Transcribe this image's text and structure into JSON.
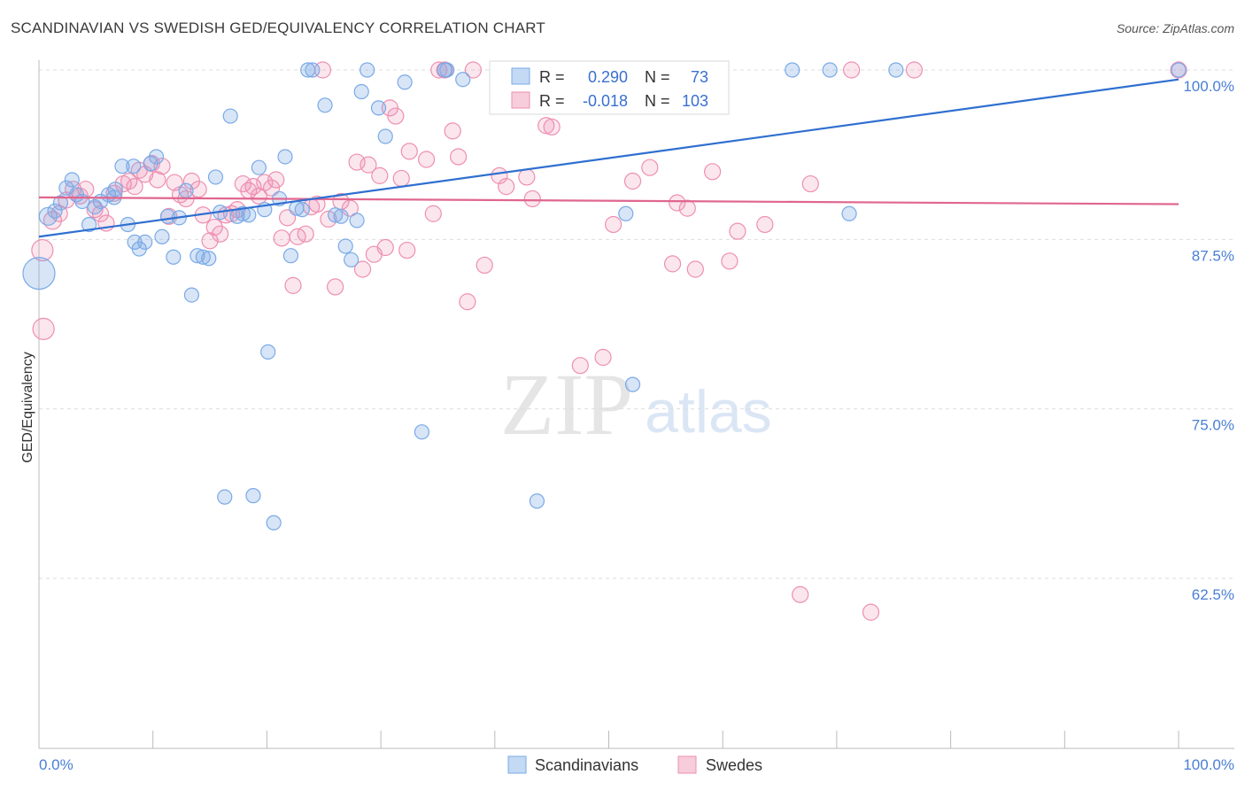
{
  "title": "SCANDINAVIAN VS SWEDISH GED/EQUIVALENCY CORRELATION CHART",
  "source": "Source: ZipAtlas.com",
  "watermark": {
    "zip": "ZIP",
    "atlas": "atlas"
  },
  "colors": {
    "blue": "#7aaae6",
    "blue_fill": "rgba(122,170,230,0.30)",
    "blue_line": "#2f6fd0",
    "pink": "#ee8fb0",
    "pink_fill": "rgba(238,143,176,0.22)",
    "pink_line": "#e0668f",
    "tick_text": "#4a7fd4",
    "grid": "#dddddd"
  },
  "stats": {
    "r_label": "R =",
    "n_label": "N =",
    "blue": {
      "r": "0.290",
      "n": "73"
    },
    "pink": {
      "r": "-0.018",
      "n": "103"
    }
  },
  "chart_data": {
    "type": "scatter",
    "title": "SCANDINAVIAN VS SWEDISH GED/EQUIVALENCY CORRELATION CHART",
    "xlabel": "",
    "ylabel": "GED/Equivalency",
    "xlim": [
      0,
      100
    ],
    "ylim": [
      50,
      101
    ],
    "x_tick_labels": [
      "0.0%",
      "100.0%"
    ],
    "y_ticks": [
      {
        "value": 100,
        "label": "100.0%"
      },
      {
        "value": 87.5,
        "label": "87.5%"
      },
      {
        "value": 75,
        "label": "75.0%"
      },
      {
        "value": 62.5,
        "label": "62.5%"
      }
    ],
    "grid": true,
    "legend_position": "bottom-center",
    "series": [
      {
        "name": "Scandinavians",
        "color": "#7aaae6",
        "trend": {
          "x": [
            0,
            100
          ],
          "y": [
            87.7,
            99.3
          ]
        },
        "points": [
          [
            0,
            85,
            18
          ],
          [
            0.8,
            89.2,
            10
          ],
          [
            1.4,
            89.6,
            8
          ],
          [
            1.9,
            90.2,
            8
          ],
          [
            2.4,
            91.3,
            8
          ],
          [
            2.9,
            91.9,
            8
          ],
          [
            3.3,
            90.8,
            8
          ],
          [
            3.8,
            90.3,
            8
          ],
          [
            4.4,
            88.6,
            8
          ],
          [
            4.9,
            89.9,
            8
          ],
          [
            5.4,
            90.3,
            8
          ],
          [
            6.1,
            90.8,
            8
          ],
          [
            6.6,
            90.6,
            8
          ],
          [
            7.3,
            92.9,
            8
          ],
          [
            7.8,
            88.6,
            8
          ],
          [
            8.4,
            87.3,
            8
          ],
          [
            8.8,
            86.8,
            8
          ],
          [
            9.3,
            87.3,
            8
          ],
          [
            9.8,
            93.1,
            8
          ],
          [
            10.3,
            93.6,
            8
          ],
          [
            10.8,
            87.7,
            8
          ],
          [
            11.3,
            89.2,
            8
          ],
          [
            11.8,
            86.2,
            8
          ],
          [
            12.3,
            89.1,
            8
          ],
          [
            12.9,
            91.1,
            8
          ],
          [
            13.4,
            83.4,
            8
          ],
          [
            13.9,
            86.3,
            8
          ],
          [
            14.4,
            86.2,
            8
          ],
          [
            14.9,
            86.1,
            8
          ],
          [
            15.5,
            92.1,
            8
          ],
          [
            15.9,
            89.5,
            8
          ],
          [
            16.3,
            68.5,
            8
          ],
          [
            16.8,
            96.6,
            8
          ],
          [
            17.4,
            89.2,
            8
          ],
          [
            18.4,
            89.3,
            8
          ],
          [
            18.8,
            68.6,
            8
          ],
          [
            19.3,
            92.8,
            8
          ],
          [
            19.8,
            89.7,
            8
          ],
          [
            20.1,
            79.2,
            8
          ],
          [
            20.6,
            66.6,
            8
          ],
          [
            21.1,
            90.5,
            8
          ],
          [
            21.6,
            93.6,
            8
          ],
          [
            22.1,
            86.3,
            8
          ],
          [
            22.6,
            89.8,
            8
          ],
          [
            23.1,
            89.7,
            8
          ],
          [
            23.6,
            100,
            8
          ],
          [
            24.0,
            100,
            8
          ],
          [
            25.1,
            97.4,
            8
          ],
          [
            26.0,
            89.3,
            8
          ],
          [
            26.9,
            87.0,
            8
          ],
          [
            27.4,
            86.0,
            8
          ],
          [
            27.9,
            88.9,
            8
          ],
          [
            28.3,
            98.4,
            8
          ],
          [
            28.8,
            100,
            8
          ],
          [
            29.8,
            97.2,
            8
          ],
          [
            30.4,
            95.1,
            8
          ],
          [
            32.1,
            99.1,
            8
          ],
          [
            33.6,
            73.3,
            8
          ],
          [
            35.6,
            100,
            8
          ],
          [
            35.8,
            100,
            8
          ],
          [
            37.2,
            99.3,
            8
          ],
          [
            43.7,
            68.2,
            8
          ],
          [
            51.5,
            89.4,
            8
          ],
          [
            52.1,
            76.8,
            8
          ],
          [
            66.1,
            100,
            8
          ],
          [
            69.4,
            100,
            8
          ],
          [
            71.1,
            89.4,
            8
          ],
          [
            75.2,
            100,
            8
          ],
          [
            100,
            100,
            8
          ],
          [
            8.3,
            92.9,
            8
          ],
          [
            17.9,
            89.4,
            8
          ],
          [
            6.7,
            91.2,
            8
          ],
          [
            26.5,
            89.2,
            8
          ]
        ]
      },
      {
        "name": "Swedes",
        "color": "#ee8fb0",
        "trend": {
          "x": [
            0,
            100
          ],
          "y": [
            90.6,
            90.1
          ]
        },
        "points": [
          [
            0.3,
            86.7,
            12
          ],
          [
            0.4,
            80.9,
            12
          ],
          [
            1.2,
            88.9,
            10
          ],
          [
            1.8,
            89.4,
            9
          ],
          [
            2.4,
            90.4,
            9
          ],
          [
            3.0,
            91.2,
            9
          ],
          [
            3.6,
            90.7,
            9
          ],
          [
            4.1,
            91.2,
            9
          ],
          [
            4.9,
            89.7,
            9
          ],
          [
            5.4,
            89.4,
            9
          ],
          [
            5.9,
            88.7,
            9
          ],
          [
            6.6,
            90.9,
            9
          ],
          [
            7.4,
            91.6,
            9
          ],
          [
            7.9,
            91.8,
            9
          ],
          [
            8.4,
            91.4,
            9
          ],
          [
            8.8,
            92.6,
            9
          ],
          [
            9.3,
            92.3,
            9
          ],
          [
            9.9,
            93.1,
            9
          ],
          [
            10.4,
            91.9,
            9
          ],
          [
            10.8,
            92.9,
            9
          ],
          [
            11.4,
            89.2,
            9
          ],
          [
            11.9,
            91.7,
            9
          ],
          [
            12.4,
            90.8,
            9
          ],
          [
            12.9,
            90.5,
            9
          ],
          [
            13.4,
            91.8,
            9
          ],
          [
            14.0,
            91.2,
            9
          ],
          [
            14.4,
            89.3,
            9
          ],
          [
            15.0,
            87.4,
            9
          ],
          [
            15.4,
            88.4,
            9
          ],
          [
            15.9,
            87.9,
            9
          ],
          [
            16.4,
            89.3,
            9
          ],
          [
            16.9,
            89.4,
            9
          ],
          [
            17.4,
            89.7,
            9
          ],
          [
            17.9,
            91.6,
            9
          ],
          [
            18.4,
            91.1,
            9
          ],
          [
            18.8,
            91.4,
            9
          ],
          [
            19.3,
            90.7,
            9
          ],
          [
            19.8,
            91.7,
            9
          ],
          [
            20.4,
            91.3,
            9
          ],
          [
            20.8,
            91.9,
            9
          ],
          [
            21.3,
            87.6,
            9
          ],
          [
            21.8,
            89.1,
            9
          ],
          [
            22.3,
            84.1,
            9
          ],
          [
            22.7,
            87.7,
            9
          ],
          [
            23.4,
            87.9,
            9
          ],
          [
            23.9,
            89.9,
            9
          ],
          [
            24.4,
            90.1,
            9
          ],
          [
            24.9,
            100,
            9
          ],
          [
            25.4,
            89.0,
            9
          ],
          [
            26.0,
            84.0,
            9
          ],
          [
            26.5,
            90.3,
            9
          ],
          [
            27.3,
            89.8,
            9
          ],
          [
            27.9,
            93.2,
            9
          ],
          [
            28.4,
            85.3,
            9
          ],
          [
            28.9,
            93.0,
            9
          ],
          [
            29.4,
            86.4,
            9
          ],
          [
            29.9,
            92.2,
            9
          ],
          [
            30.4,
            86.9,
            9
          ],
          [
            30.8,
            97.2,
            9
          ],
          [
            31.3,
            96.6,
            9
          ],
          [
            31.8,
            92.0,
            9
          ],
          [
            32.3,
            86.7,
            9
          ],
          [
            32.5,
            94.0,
            9
          ],
          [
            34.0,
            93.4,
            9
          ],
          [
            34.6,
            89.4,
            9
          ],
          [
            35.1,
            100,
            9
          ],
          [
            35.6,
            100,
            9
          ],
          [
            36.3,
            95.5,
            9
          ],
          [
            36.8,
            93.6,
            9
          ],
          [
            37.6,
            82.9,
            9
          ],
          [
            38.1,
            100,
            9
          ],
          [
            39.1,
            85.6,
            9
          ],
          [
            40.4,
            92.2,
            9
          ],
          [
            41.0,
            91.4,
            9
          ],
          [
            42.4,
            100,
            9
          ],
          [
            42.8,
            92.1,
            9
          ],
          [
            43.3,
            90.5,
            9
          ],
          [
            44.0,
            100,
            9
          ],
          [
            44.5,
            95.9,
            9
          ],
          [
            45.0,
            95.8,
            9
          ],
          [
            46.0,
            100,
            9
          ],
          [
            47.5,
            78.2,
            9
          ],
          [
            48.5,
            100,
            9
          ],
          [
            49.5,
            78.8,
            9
          ],
          [
            50.0,
            100,
            9
          ],
          [
            50.4,
            88.6,
            9
          ],
          [
            52.1,
            91.8,
            9
          ],
          [
            53.6,
            92.8,
            9
          ],
          [
            55.6,
            85.7,
            9
          ],
          [
            56.0,
            90.2,
            9
          ],
          [
            56.9,
            89.8,
            9
          ],
          [
            57.6,
            85.3,
            9
          ],
          [
            59.1,
            92.5,
            9
          ],
          [
            60.6,
            85.9,
            9
          ],
          [
            61.3,
            88.1,
            9
          ],
          [
            63.7,
            88.6,
            9
          ],
          [
            66.8,
            61.3,
            9
          ],
          [
            67.7,
            91.6,
            9
          ],
          [
            71.3,
            100,
            9
          ],
          [
            73.0,
            60.0,
            9
          ],
          [
            76.8,
            100,
            9
          ],
          [
            100,
            100,
            9
          ],
          [
            44.5,
            100,
            9
          ]
        ]
      }
    ]
  },
  "legend": {
    "items": [
      "Scandinavians",
      "Swedes"
    ]
  }
}
